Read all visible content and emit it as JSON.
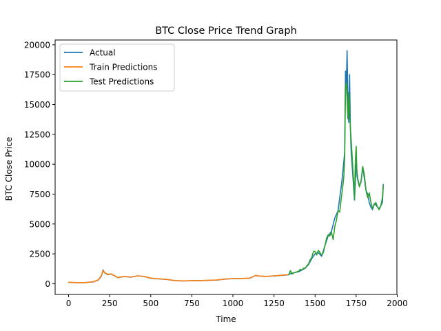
{
  "chart_data": {
    "type": "line",
    "title": "BTC Close Price Trend Graph",
    "xlabel": "Time",
    "ylabel": "BTC Close Price",
    "xlim": [
      -82,
      1998
    ],
    "ylim": [
      -900,
      20400
    ],
    "xticks": [
      0,
      250,
      500,
      750,
      1000,
      1250,
      1500,
      1750,
      2000
    ],
    "xtick_labels": [
      "0",
      "250",
      "500",
      "750",
      "1000",
      "1250",
      "1500",
      "1750",
      "2000"
    ],
    "yticks": [
      0,
      2500,
      5000,
      7500,
      10000,
      12500,
      15000,
      17500,
      20000
    ],
    "ytick_labels": [
      "0",
      "2500",
      "5000",
      "7500",
      "10000",
      "12500",
      "15000",
      "17500",
      "20000"
    ],
    "grid": false,
    "legend_position": "top-left",
    "series": [
      {
        "name": "Actual",
        "color": "#1f77b4",
        "x": [
          0,
          50,
          100,
          150,
          180,
          200,
          210,
          220,
          240,
          260,
          280,
          300,
          340,
          380,
          420,
          460,
          500,
          550,
          600,
          650,
          700,
          750,
          800,
          850,
          900,
          950,
          1000,
          1050,
          1100,
          1140,
          1150,
          1200,
          1250,
          1300,
          1340,
          1350,
          1380,
          1400,
          1420,
          1440,
          1460,
          1480,
          1500,
          1520,
          1540,
          1560,
          1580,
          1600,
          1620,
          1640,
          1650,
          1660,
          1670,
          1680,
          1685,
          1690,
          1695,
          1700,
          1705,
          1710,
          1715,
          1720,
          1730,
          1740,
          1750,
          1760,
          1770,
          1780,
          1790,
          1800,
          1810,
          1820,
          1830,
          1840,
          1850,
          1860,
          1870,
          1880,
          1890,
          1900,
          1910,
          1915
        ],
        "values": [
          110,
          80,
          90,
          150,
          300,
          650,
          1150,
          900,
          750,
          800,
          650,
          500,
          600,
          550,
          650,
          600,
          450,
          400,
          350,
          250,
          230,
          250,
          250,
          280,
          300,
          380,
          420,
          430,
          450,
          700,
          650,
          600,
          650,
          700,
          750,
          850,
          950,
          1000,
          1150,
          1300,
          1600,
          2100,
          2500,
          2600,
          2300,
          3200,
          4000,
          4400,
          5500,
          6100,
          7200,
          8200,
          9500,
          11000,
          17800,
          16500,
          19500,
          15000,
          13500,
          17500,
          13000,
          11000,
          9000,
          7000,
          10000,
          8800,
          8200,
          8500,
          9800,
          8800,
          7800,
          7500,
          6800,
          6400,
          6200,
          6700,
          6600,
          6400,
          6300,
          6500,
          6800,
          8300
        ]
      },
      {
        "name": "Train Predictions",
        "color": "#ff7f0e",
        "x": [
          0,
          50,
          100,
          150,
          180,
          200,
          210,
          220,
          240,
          260,
          280,
          300,
          340,
          380,
          420,
          460,
          500,
          550,
          600,
          650,
          700,
          750,
          800,
          850,
          900,
          950,
          1000,
          1050,
          1100,
          1140,
          1150,
          1200,
          1250,
          1300,
          1340
        ],
        "values": [
          120,
          90,
          95,
          160,
          320,
          700,
          1100,
          920,
          780,
          820,
          670,
          520,
          610,
          560,
          660,
          610,
          470,
          410,
          360,
          260,
          240,
          260,
          260,
          290,
          310,
          390,
          430,
          440,
          460,
          690,
          660,
          610,
          660,
          710,
          760
        ]
      },
      {
        "name": "Test Predictions",
        "color": "#2ca02c",
        "x": [
          1340,
          1350,
          1360,
          1370,
          1380,
          1390,
          1400,
          1410,
          1420,
          1430,
          1440,
          1450,
          1460,
          1470,
          1480,
          1490,
          1500,
          1510,
          1520,
          1530,
          1540,
          1550,
          1560,
          1570,
          1580,
          1590,
          1600,
          1610,
          1620,
          1630,
          1640,
          1650,
          1660,
          1670,
          1675,
          1680,
          1685,
          1690,
          1695,
          1700,
          1705,
          1710,
          1715,
          1720,
          1725,
          1730,
          1735,
          1740,
          1745,
          1750,
          1755,
          1760,
          1770,
          1780,
          1790,
          1800,
          1810,
          1820,
          1830,
          1840,
          1850,
          1860,
          1870,
          1880,
          1890,
          1900,
          1910,
          1915
        ],
        "values": [
          760,
          1100,
          800,
          900,
          950,
          1000,
          1050,
          1200,
          1150,
          1300,
          1300,
          1500,
          1650,
          2000,
          2200,
          2700,
          2700,
          2400,
          2800,
          2600,
          2400,
          2600,
          3200,
          3800,
          4100,
          4000,
          4300,
          3700,
          4800,
          5300,
          6100,
          6000,
          7200,
          8300,
          9000,
          10500,
          16500,
          16800,
          15500,
          13800,
          16000,
          14500,
          13000,
          12000,
          10800,
          9600,
          8500,
          7100,
          10200,
          11500,
          9000,
          8700,
          8100,
          8600,
          9800,
          9100,
          7800,
          7200,
          7600,
          6800,
          6300,
          6600,
          6800,
          6400,
          6200,
          6500,
          7200,
          8200
        ]
      }
    ]
  }
}
